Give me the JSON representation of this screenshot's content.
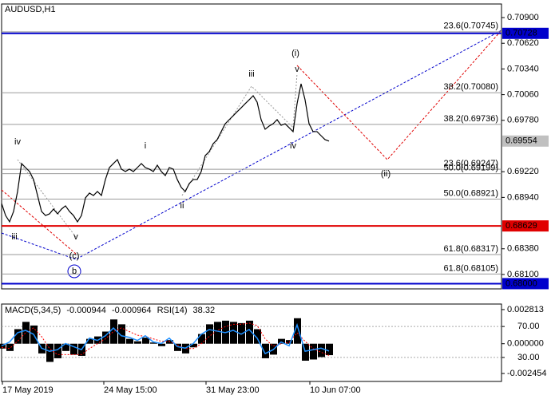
{
  "chart_data": [
    {
      "type": "line",
      "title": "AUDUSD,H1",
      "x": [
        0,
        5,
        10,
        15,
        20,
        25,
        30,
        35,
        40,
        45,
        50,
        55,
        60,
        65,
        70,
        75,
        80,
        85,
        90,
        95,
        100,
        105,
        110,
        115,
        120,
        125,
        130,
        135,
        140,
        145,
        150,
        155,
        160,
        165,
        170,
        175,
        180,
        185,
        190,
        195,
        200,
        205,
        210,
        215,
        220,
        225,
        230,
        235,
        240,
        245,
        250,
        255,
        260,
        265,
        270,
        275,
        280,
        285,
        290,
        295,
        300,
        305,
        310,
        315,
        320,
        325,
        330,
        335,
        340,
        345,
        350,
        355,
        360,
        365,
        370,
        375,
        380,
        385,
        390,
        395,
        400,
        405,
        410
      ],
      "series": [
        {
          "color": "#000000",
          "values": [
            0.68874,
            0.68743,
            0.68674,
            0.68787,
            0.69004,
            0.69309,
            0.69265,
            0.69222,
            0.69135,
            0.68961,
            0.68787,
            0.68743,
            0.68761,
            0.68813,
            0.68761,
            0.68813,
            0.68848,
            0.68787,
            0.68743,
            0.68674,
            0.68743,
            0.68935,
            0.68987,
            0.68961,
            0.69004,
            0.68961,
            0.69135,
            0.69265,
            0.69309,
            0.69352,
            0.69248,
            0.69222,
            0.69248,
            0.69222,
            0.69265,
            0.69309,
            0.69265,
            0.69248,
            0.69222,
            0.69291,
            0.69222,
            0.69178,
            0.69265,
            0.69248,
            0.69135,
            0.69048,
            0.69004,
            0.69091,
            0.69135,
            0.69135,
            0.69222,
            0.69396,
            0.69439,
            0.69526,
            0.6957,
            0.69657,
            0.69743,
            0.69787,
            0.6983,
            0.69874,
            0.69917,
            0.69961,
            0.70004,
            0.70048,
            0.69978,
            0.69787,
            0.69683,
            0.69717,
            0.69743,
            0.69787,
            0.69726,
            0.69743,
            0.697,
            0.69657,
            0.69961,
            0.70178,
            0.70004,
            0.69743,
            0.69657,
            0.69657,
            0.69613,
            0.6957,
            0.69554
          ]
        }
      ],
      "xlim": [
        0,
        626
      ],
      "ylim": [
        0.67943,
        0.71048
      ],
      "yticks": [
        {
          "value": 0.709,
          "label": "0.70900"
        },
        {
          "value": 0.7062,
          "label": "0.70620"
        },
        {
          "value": 0.7034,
          "label": "0.70340"
        },
        {
          "value": 0.7006,
          "label": "0.70060"
        },
        {
          "value": 0.6978,
          "label": "0.69780"
        },
        {
          "value": 0.6922,
          "label": "0.69220"
        },
        {
          "value": 0.6894,
          "label": "0.68940"
        },
        {
          "value": 0.6838,
          "label": "0.68380"
        },
        {
          "value": 0.681,
          "label": "0.68100"
        }
      ],
      "levels": [
        {
          "value": 0.70745,
          "label": "23.6(0.70745)"
        },
        {
          "value": 0.7008,
          "label": "38.2(0.70080)"
        },
        {
          "value": 0.69736,
          "label": "38.2(0.69736)"
        },
        {
          "value": 0.69247,
          "label": "23.6(0.69247)"
        },
        {
          "value": 0.69199,
          "label": "50.0(0.69199)"
        },
        {
          "value": 0.68921,
          "label": "50.0(0.68921)"
        },
        {
          "value": 0.68317,
          "label": "61.8(0.68317)"
        },
        {
          "value": 0.68105,
          "label": "61.8(0.68105)"
        }
      ],
      "hlines": [
        {
          "value": 0.70728,
          "label": "0.70728",
          "color": "#0000cc"
        },
        {
          "value": 0.68629,
          "label": "0.68629",
          "color": "#e00000"
        },
        {
          "value": 0.68,
          "label": "0.68000",
          "color": "#0000cc"
        }
      ],
      "wave_labels": [
        "iv",
        "iii",
        "v",
        "(c)",
        "b",
        "i",
        "ii",
        "iii",
        "v",
        "(i)",
        "iv",
        "(ii)"
      ]
    },
    {
      "type": "combo",
      "x": [
        0,
        10,
        20,
        30,
        40,
        50,
        60,
        70,
        80,
        90,
        100,
        110,
        120,
        130,
        140,
        150,
        160,
        170,
        180,
        190,
        200,
        210,
        220,
        230,
        240,
        250,
        260,
        270,
        280,
        290,
        300,
        310,
        320,
        330,
        340,
        350,
        360,
        370,
        380,
        390,
        400,
        410
      ],
      "series": [
        {
          "name": "MACD(5,34,5)",
          "type": "bar",
          "color": "#000000",
          "values": [
            -0.0004,
            -0.0006,
            0.0012,
            0.0018,
            0.0015,
            -0.0008,
            -0.0015,
            -0.0012,
            -0.0006,
            -0.0009,
            -0.001,
            0.0004,
            0.0006,
            0.001,
            0.002,
            0.0016,
            0.0004,
            0.0002,
            0.0005,
            0.0001,
            -0.0002,
            0.0003,
            -0.0006,
            -0.0008,
            -0.0003,
            0.0008,
            0.0016,
            0.0018,
            0.0019,
            0.0018,
            0.0017,
            0.0019,
            0.0012,
            -0.0012,
            -0.0009,
            0.0004,
            0.0003,
            0.0021,
            -0.0014,
            -0.0013,
            -0.0011,
            -0.000944
          ]
        },
        {
          "type": "line",
          "color": "#ff0000",
          "values": [
            -0.0003,
            -0.0004,
            0.0002,
            0.0009,
            0.0013,
            0.0006,
            -0.0004,
            -0.0009,
            -0.0009,
            -0.0009,
            -0.0009,
            -0.0004,
            0,
            0.0004,
            0.001,
            0.0013,
            0.001,
            0.0007,
            0.0006,
            0.0004,
            0.0002,
            0.0002,
            -0.0001,
            -0.0004,
            -0.0004,
            0,
            0.0006,
            0.0011,
            0.0014,
            0.0016,
            0.0016,
            0.0017,
            0.0015,
            0.0004,
            -0.0002,
            0,
            0.0001,
            0.0009,
            0.0002,
            -0.0004,
            -0.0007,
            -0.000964
          ]
        },
        {
          "name": "RSI(14)",
          "type": "line",
          "axis": "y2",
          "color": "#1e90ff",
          "values": [
            45,
            50,
            62,
            65,
            60,
            42,
            38,
            40,
            48,
            44,
            40,
            55,
            52,
            58,
            68,
            58,
            56,
            52,
            58,
            50,
            48,
            55,
            44,
            42,
            48,
            60,
            66,
            64,
            62,
            65,
            60,
            66,
            55,
            35,
            40,
            50,
            45,
            72,
            38,
            40,
            42,
            38.32
          ]
        }
      ],
      "xlim": [
        0,
        626
      ],
      "ylim": [
        -0.00311,
        0.00327
      ],
      "yticks": [
        0.002813,
        {
          "value": 0,
          "label": "0.000000"
        },
        -0.002454
      ],
      "y2lim": [
        -1,
        99
      ],
      "y2ticks": [
        {
          "value": 70,
          "label": "70.00"
        },
        {
          "value": 30,
          "label": "30.00"
        }
      ],
      "xticks": [
        {
          "value": 1,
          "label": "17 May 2019"
        },
        {
          "value": 128,
          "label": "24 May 15:00"
        },
        {
          "value": 256,
          "label": "31 May 23:00"
        },
        {
          "value": 386,
          "label": "10 Jun 07:00"
        }
      ]
    }
  ]
}
